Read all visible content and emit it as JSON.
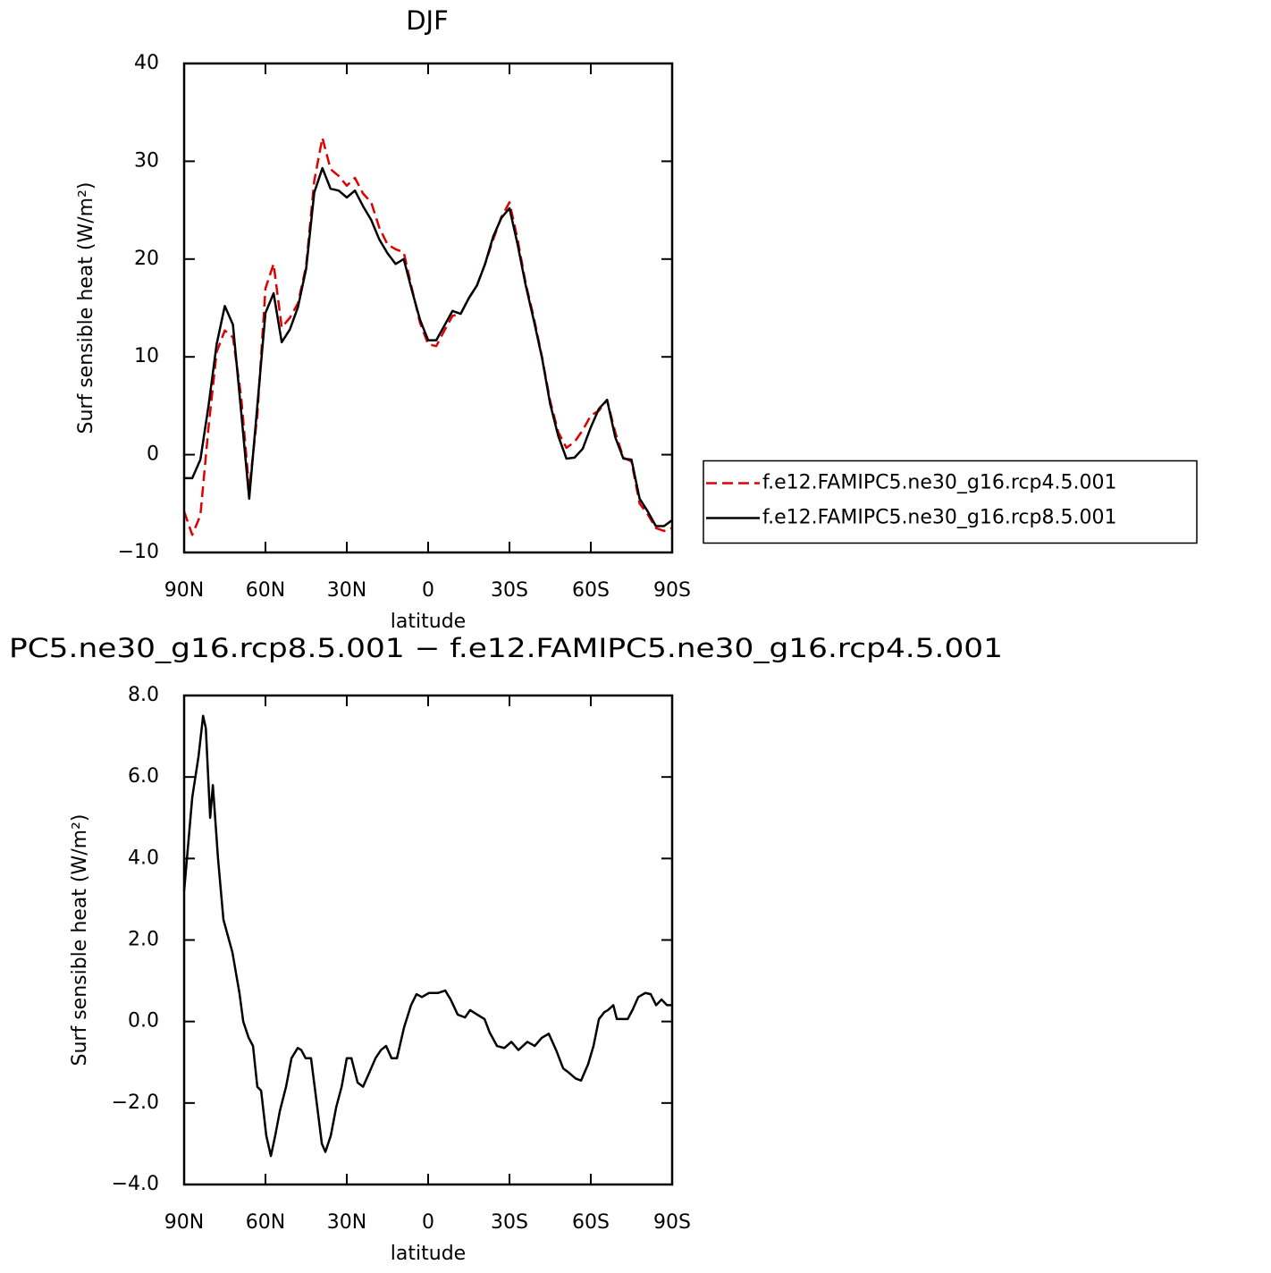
{
  "chart_data": [
    {
      "type": "line",
      "title": "DJF",
      "xlabel": "latitude",
      "ylabel": "Surf sensible heat (W/m²)",
      "x": [
        90,
        87,
        84,
        81,
        78,
        75,
        72,
        69,
        66,
        63,
        60,
        57,
        54,
        51,
        48,
        45,
        42,
        39,
        36,
        33,
        30,
        27,
        24,
        21,
        18,
        15,
        12,
        9,
        6,
        3,
        0,
        -3,
        -6,
        -9,
        -12,
        -15,
        -18,
        -21,
        -24,
        -27,
        -30,
        -33,
        -36,
        -39,
        -42,
        -45,
        -48,
        -51,
        -54,
        -57,
        -60,
        -63,
        -66,
        -69,
        -72,
        -75,
        -78,
        -81,
        -84,
        -87,
        -90
      ],
      "xlim": [
        90,
        -90
      ],
      "xticks": [
        {
          "value": 90,
          "label": "90N"
        },
        {
          "value": 60,
          "label": "60N"
        },
        {
          "value": 30,
          "label": "30N"
        },
        0,
        {
          "value": -30,
          "label": "30S"
        },
        {
          "value": -60,
          "label": "60S"
        },
        {
          "value": -90,
          "label": "90S"
        }
      ],
      "ylim": [
        -10,
        40
      ],
      "yticks": [
        {
          "value": -10,
          "label": "−10"
        },
        0,
        10,
        20,
        30,
        40
      ],
      "legend": "right",
      "series": [
        {
          "name": "f.e12.FAMIPC5.ne30_g16.rcp4.5.001",
          "color": "#e00000",
          "style": "dashed",
          "values": [
            -5.8,
            -8.2,
            -6.2,
            2.8,
            10.5,
            12.7,
            12,
            6,
            -3.5,
            4,
            17,
            19.5,
            13,
            14,
            15.5,
            19.3,
            28,
            32.4,
            29.2,
            28.5,
            27.5,
            28.3,
            26.7,
            25.8,
            23.2,
            21.5,
            21,
            20.7,
            17,
            13.5,
            11.3,
            11.1,
            12.7,
            14.2,
            14.4,
            16,
            17.3,
            19.5,
            22,
            24.3,
            25.8,
            22,
            17.5,
            14,
            10,
            5.5,
            2.3,
            0.7,
            1.3,
            2.5,
            4,
            4.5,
            5.6,
            2.3,
            -0.3,
            -0.7,
            -5,
            -6.1,
            -7.5,
            -7.8,
            -7.5
          ]
        },
        {
          "name": "f.e12.FAMIPC5.ne30_g16.rcp8.5.001",
          "color": "#000000",
          "style": "solid",
          "values": [
            -2.4,
            -2.4,
            -0.5,
            5,
            11.3,
            15.2,
            13.3,
            4.5,
            -4.5,
            5,
            14.5,
            16.5,
            11.5,
            12.8,
            15.1,
            19,
            26.8,
            29.3,
            27.2,
            27,
            26.3,
            27,
            25.4,
            24,
            22,
            20.6,
            19.5,
            20,
            16.8,
            13.8,
            11.7,
            11.7,
            13.2,
            14.7,
            14.4,
            16,
            17.3,
            19.5,
            22.3,
            24.2,
            25.2,
            21.5,
            17.3,
            13.7,
            9.9,
            5.2,
            1.9,
            -0.4,
            -0.3,
            0.6,
            2.8,
            4.7,
            5.6,
            1.8,
            -0.4,
            -0.5,
            -4.5,
            -5.8,
            -7.3,
            -7.3,
            -6.7
          ]
        }
      ]
    },
    {
      "type": "line",
      "title": "PC5.ne30_g16.rcp8.5.001 − f.e12.FAMIPC5.ne30_g16.rcp4.5.001",
      "xlabel": "latitude",
      "ylabel": "Surf sensible heat (W/m²)",
      "x": [
        90,
        87,
        84.7,
        83,
        82,
        80.4,
        79.4,
        77.5,
        75.5,
        72.2,
        69.6,
        68.2,
        66.2,
        64.6,
        63,
        61.6,
        59.7,
        58,
        56.4,
        54.7,
        52.4,
        50.4,
        48.1,
        46.8,
        45.2,
        43.2,
        40.9,
        39.2,
        37.9,
        35.9,
        33.9,
        31.9,
        30,
        28.3,
        26,
        24,
        22,
        19.4,
        17.4,
        15.5,
        13.5,
        11.5,
        8.9,
        6.3,
        4.3,
        2.3,
        -0.3,
        -3.6,
        -6.3,
        -8.3,
        -10.9,
        -13.6,
        -15.5,
        -18.1,
        -20.8,
        -22.7,
        -25.4,
        -28.1,
        -30.7,
        -33.3,
        -36.6,
        -39.3,
        -41.9,
        -44.5,
        -47.2,
        -49.8,
        -51.8,
        -54.4,
        -56.4,
        -59,
        -61,
        -63,
        -65,
        -66.3,
        -68.3,
        -69.6,
        -71.6,
        -73.6,
        -75.5,
        -77.5,
        -80.1,
        -82.1,
        -84.1,
        -86.1,
        -88.1,
        -90
      ],
      "xlim": [
        90,
        -90
      ],
      "xticks": [
        {
          "value": 90,
          "label": "90N"
        },
        {
          "value": 60,
          "label": "60N"
        },
        {
          "value": 30,
          "label": "30N"
        },
        0,
        {
          "value": -30,
          "label": "30S"
        },
        {
          "value": -60,
          "label": "60S"
        },
        {
          "value": -90,
          "label": "90S"
        }
      ],
      "ylim": [
        -4,
        8
      ],
      "yticks": [
        {
          "value": -4,
          "label": "−4.0"
        },
        {
          "value": -2,
          "label": "−2.0"
        },
        {
          "value": 0,
          "label": "0.0"
        },
        {
          "value": 2,
          "label": "2.0"
        },
        {
          "value": 4,
          "label": "4.0"
        },
        {
          "value": 6,
          "label": "6.0"
        },
        {
          "value": 8,
          "label": "8.0"
        }
      ],
      "series": [
        {
          "color": "#000000",
          "style": "solid",
          "values": [
            3.2,
            5.5,
            6.5,
            7.5,
            7.2,
            5.0,
            5.8,
            4.0,
            2.5,
            1.7,
            0.7,
            0,
            -0.4,
            -0.6,
            -1.6,
            -1.7,
            -2.8,
            -3.3,
            -2.8,
            -2.2,
            -1.6,
            -0.9,
            -0.65,
            -0.7,
            -0.9,
            -0.9,
            -2.1,
            -3.0,
            -3.2,
            -2.8,
            -2.1,
            -1.6,
            -0.9,
            -0.9,
            -1.5,
            -1.6,
            -1.3,
            -0.9,
            -0.7,
            -0.6,
            -0.9,
            -0.9,
            -0.15,
            0.4,
            0.67,
            0.6,
            0.7,
            0.7,
            0.76,
            0.54,
            0.17,
            0.1,
            0.28,
            0.17,
            0.06,
            -0.27,
            -0.6,
            -0.65,
            -0.5,
            -0.7,
            -0.5,
            -0.6,
            -0.4,
            -0.3,
            -0.7,
            -1.15,
            -1.25,
            -1.4,
            -1.45,
            -1.05,
            -0.6,
            0.06,
            0.23,
            0.28,
            0.4,
            0.06,
            0.06,
            0.06,
            0.3,
            0.6,
            0.7,
            0.67,
            0.4,
            0.54,
            0.4,
            0.4
          ]
        }
      ]
    }
  ]
}
